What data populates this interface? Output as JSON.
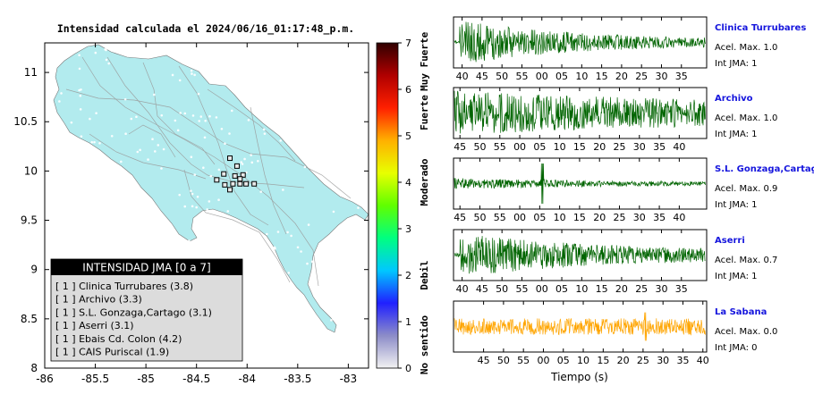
{
  "map": {
    "title": "Intensidad calculada el 2024/06/16_01:17:48_p.m.",
    "xticks": [
      "-86",
      "-85.5",
      "-85",
      "-84.5",
      "-84",
      "-83.5",
      "-83"
    ],
    "yticks": [
      "11",
      "10.5",
      "10",
      "9.5",
      "9",
      "8.5",
      "8"
    ],
    "xlim": [
      -86,
      -82.8
    ],
    "ylim": [
      8,
      11.3
    ],
    "land_color": "#b2ebee",
    "sea_color": "#ffffff",
    "stations": [
      {
        "lon": -84.17,
        "lat": 10.13
      },
      {
        "lon": -84.1,
        "lat": 10.05
      },
      {
        "lon": -84.23,
        "lat": 9.97
      },
      {
        "lon": -84.12,
        "lat": 9.95
      },
      {
        "lon": -84.04,
        "lat": 9.96
      },
      {
        "lon": -84.3,
        "lat": 9.91
      },
      {
        "lon": -84.22,
        "lat": 9.86
      },
      {
        "lon": -84.14,
        "lat": 9.87
      },
      {
        "lon": -84.07,
        "lat": 9.87
      },
      {
        "lon": -84.01,
        "lat": 9.87
      },
      {
        "lon": -83.93,
        "lat": 9.87
      },
      {
        "lon": -84.17,
        "lat": 9.81
      },
      {
        "lon": -84.07,
        "lat": 9.92
      }
    ],
    "legend": {
      "title": "INTENSIDAD JMA [0 a 7]",
      "items": [
        "[ 1 ]  Clinica Turrubares (3.8)",
        "[ 1 ]  Archivo (3.3)",
        "[ 1 ]  S.L. Gonzaga,Cartago (3.1)",
        "[ 1 ]  Aserri (3.1)",
        "[ 1 ]  Ebais Cd. Colon (4.2)",
        "[ 1 ]  CAIS Puriscal (1.9)"
      ]
    }
  },
  "colorbar": {
    "ticks": [
      "0",
      "1",
      "2",
      "3",
      "4",
      "5",
      "6",
      "7"
    ],
    "range": [
      0,
      7
    ],
    "labels": [
      {
        "text": "No sentido",
        "value": 0.5
      },
      {
        "text": "Debil",
        "value": 2
      },
      {
        "text": "Moderado",
        "value": 4
      },
      {
        "text": "Fuerte",
        "value": 5.5
      },
      {
        "text": "Muy Fuerte",
        "value": 6.6
      }
    ],
    "stops": [
      "#f2f2f2",
      "#8c8cc8",
      "#2020ff",
      "#00c8ff",
      "#00ff80",
      "#60ff00",
      "#e8ff00",
      "#ffb000",
      "#ff2000",
      "#b00000",
      "#300000"
    ]
  },
  "chart_data": {
    "type": "line",
    "xlabel": "Tiempo (s)",
    "series": [
      {
        "name": "Clinica Turrubares",
        "acel_label": "Acel. Max. 1.0",
        "int_label": "Int JMA: 1",
        "color": "#006400",
        "ticks": [
          "40",
          "45",
          "50",
          "55",
          "00",
          "05",
          "10",
          "15",
          "20",
          "25",
          "30",
          "35"
        ],
        "first_tick": 40,
        "tick_offset": 0.8,
        "amp": 1.0,
        "onset": 0.02,
        "decay": 2.2,
        "spike": null
      },
      {
        "name": "Archivo",
        "acel_label": "Acel. Max. 1.0",
        "int_label": "Int JMA: 1",
        "color": "#006400",
        "ticks": [
          "45",
          "50",
          "55",
          "00",
          "05",
          "10",
          "15",
          "20",
          "25",
          "30",
          "35",
          "40"
        ],
        "first_tick": 45,
        "tick_offset": 0.6,
        "amp": 1.0,
        "onset": 0.0,
        "decay": 0.6,
        "spike": null
      },
      {
        "name": "S.L. Gonzaga,Cartago",
        "acel_label": "Acel. Max. 0.9",
        "int_label": "Int JMA: 1",
        "color": "#006400",
        "ticks": [
          "45",
          "50",
          "55",
          "00",
          "05",
          "10",
          "15",
          "20",
          "25",
          "30",
          "35",
          "40"
        ],
        "first_tick": 45,
        "tick_offset": 0.6,
        "amp": 0.25,
        "onset": 0.0,
        "decay": 1.2,
        "spike": 0.35
      },
      {
        "name": "Aserri",
        "acel_label": "Acel. Max. 0.7",
        "int_label": "Int JMA: 1",
        "color": "#006400",
        "ticks": [
          "40",
          "45",
          "50",
          "55",
          "00",
          "05",
          "10",
          "15",
          "20",
          "25",
          "30",
          "35"
        ],
        "first_tick": 40,
        "tick_offset": 0.8,
        "amp": 1.0,
        "onset": 0.02,
        "decay": 1.6,
        "spike": null
      },
      {
        "name": "La Sabana",
        "acel_label": "Acel. Max. 0.0",
        "int_label": "Int JMA: 0",
        "color": "#ffa500",
        "ticks": [
          "45",
          "50",
          "55",
          "00",
          "05",
          "10",
          "15",
          "20",
          "25",
          "30",
          "35",
          "40"
        ],
        "first_tick": 45,
        "tick_offset": 2.8,
        "amp": 0.8,
        "onset": 0.0,
        "decay": 0.0,
        "spike": 0.76
      }
    ]
  }
}
